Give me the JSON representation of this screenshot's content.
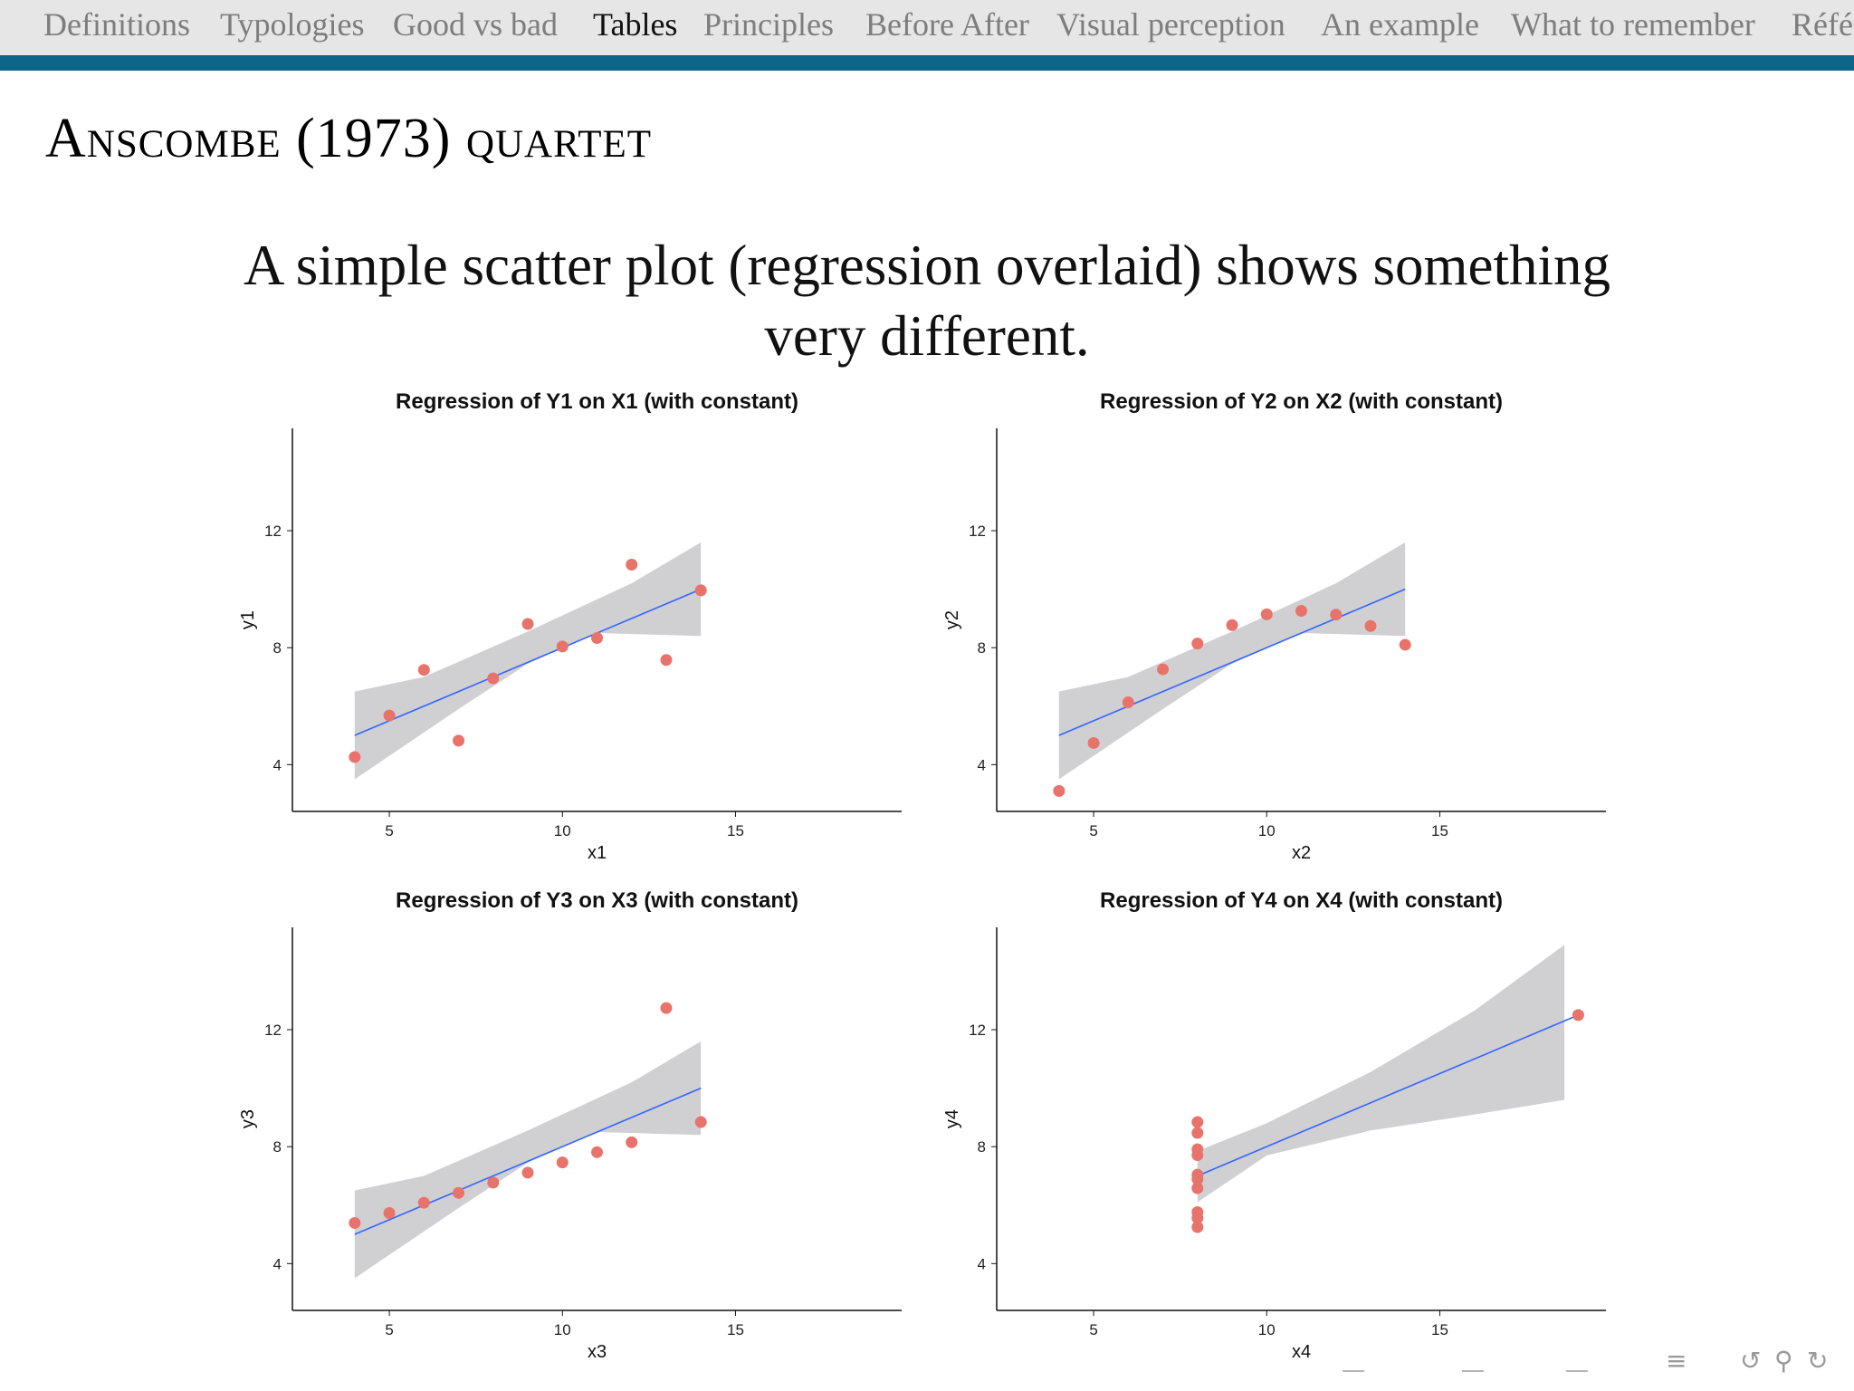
{
  "nav": {
    "items": [
      {
        "label": "Definitions"
      },
      {
        "label": "Typologies"
      },
      {
        "label": "Good vs bad"
      },
      {
        "label": "Tables",
        "active": true
      },
      {
        "label": "Principles"
      },
      {
        "label": "Before After"
      },
      {
        "label": "Visual perception"
      },
      {
        "label": "An example"
      },
      {
        "label": "What to remember"
      },
      {
        "label": "Réfé"
      }
    ]
  },
  "slide": {
    "title": "Anscombe (1973) quartet",
    "subtitle_line1": "A simple scatter plot (regression overlaid) shows something",
    "subtitle_line2": "very different."
  },
  "colors": {
    "point": "#e8736b",
    "line": "#3366ff",
    "band": "#c8c8ca",
    "nav_rule": "#0b6689"
  },
  "chart_data": [
    {
      "type": "scatter",
      "title": "Regression of Y1 on X1 (with constant)",
      "xlabel": "x1",
      "ylabel": "y1",
      "xlim": [
        2.2,
        19.8
      ],
      "ylim": [
        2.4,
        15.5
      ],
      "xticks": [
        5,
        10,
        15
      ],
      "yticks": [
        4,
        8,
        12
      ],
      "x": [
        10,
        8,
        13,
        9,
        11,
        14,
        6,
        4,
        12,
        7,
        5
      ],
      "y": [
        8.04,
        6.95,
        7.58,
        8.81,
        8.33,
        9.96,
        7.24,
        4.26,
        10.84,
        4.82,
        5.68
      ],
      "regression": {
        "intercept": 3.0,
        "slope": 0.5,
        "x_range": [
          4,
          14
        ]
      },
      "band": {
        "lower": [
          [
            4,
            3.5
          ],
          [
            7,
            5.9
          ],
          [
            9,
            7.45
          ],
          [
            11,
            8.5
          ],
          [
            14,
            8.4
          ]
        ],
        "upper": [
          [
            4,
            6.5
          ],
          [
            6,
            7.0
          ],
          [
            9,
            8.55
          ],
          [
            12,
            10.2
          ],
          [
            14,
            11.6
          ]
        ]
      }
    },
    {
      "type": "scatter",
      "title": "Regression of Y2 on X2 (with constant)",
      "xlabel": "x2",
      "ylabel": "y2",
      "xlim": [
        2.2,
        19.8
      ],
      "ylim": [
        2.4,
        15.5
      ],
      "xticks": [
        5,
        10,
        15
      ],
      "yticks": [
        4,
        8,
        12
      ],
      "x": [
        10,
        8,
        13,
        9,
        11,
        14,
        6,
        4,
        12,
        7,
        5
      ],
      "y": [
        9.14,
        8.14,
        8.74,
        8.77,
        9.26,
        8.1,
        6.13,
        3.1,
        9.13,
        7.26,
        4.74
      ],
      "regression": {
        "intercept": 3.0,
        "slope": 0.5,
        "x_range": [
          4,
          14
        ]
      },
      "band": {
        "lower": [
          [
            4,
            3.5
          ],
          [
            7,
            5.9
          ],
          [
            9,
            7.45
          ],
          [
            11,
            8.5
          ],
          [
            14,
            8.4
          ]
        ],
        "upper": [
          [
            4,
            6.5
          ],
          [
            6,
            7.0
          ],
          [
            9,
            8.55
          ],
          [
            12,
            10.2
          ],
          [
            14,
            11.6
          ]
        ]
      }
    },
    {
      "type": "scatter",
      "title": "Regression of Y3 on X3 (with constant)",
      "xlabel": "x3",
      "ylabel": "y3",
      "xlim": [
        2.2,
        19.8
      ],
      "ylim": [
        2.4,
        15.5
      ],
      "xticks": [
        5,
        10,
        15
      ],
      "yticks": [
        4,
        8,
        12
      ],
      "x": [
        10,
        8,
        13,
        9,
        11,
        14,
        6,
        4,
        12,
        7,
        5
      ],
      "y": [
        7.46,
        6.77,
        12.74,
        7.11,
        7.81,
        8.84,
        6.08,
        5.39,
        8.15,
        6.42,
        5.73
      ],
      "regression": {
        "intercept": 3.0,
        "slope": 0.5,
        "x_range": [
          4,
          14
        ]
      },
      "band": {
        "lower": [
          [
            4,
            3.5
          ],
          [
            7,
            5.9
          ],
          [
            9,
            7.45
          ],
          [
            11,
            8.5
          ],
          [
            14,
            8.4
          ]
        ],
        "upper": [
          [
            4,
            6.5
          ],
          [
            6,
            7.0
          ],
          [
            9,
            8.55
          ],
          [
            12,
            10.2
          ],
          [
            14,
            11.6
          ]
        ]
      }
    },
    {
      "type": "scatter",
      "title": "Regression of Y4 on X4 (with constant)",
      "xlabel": "x4",
      "ylabel": "y4",
      "xlim": [
        2.2,
        19.8
      ],
      "ylim": [
        2.4,
        15.5
      ],
      "xticks": [
        5,
        10,
        15
      ],
      "yticks": [
        4,
        8,
        12
      ],
      "x": [
        8,
        8,
        8,
        8,
        8,
        8,
        8,
        19,
        8,
        8,
        8
      ],
      "y": [
        6.58,
        5.76,
        7.71,
        8.84,
        8.47,
        7.04,
        5.25,
        12.5,
        5.56,
        7.91,
        6.89
      ],
      "regression": {
        "intercept": 3.0,
        "slope": 0.5,
        "x_range": [
          8,
          19
        ]
      },
      "band": {
        "lower": [
          [
            8,
            6.1
          ],
          [
            10,
            7.7
          ],
          [
            13,
            8.55
          ],
          [
            16,
            9.1
          ],
          [
            18.6,
            9.6
          ]
        ],
        "upper": [
          [
            8,
            7.85
          ],
          [
            10,
            8.8
          ],
          [
            13,
            10.55
          ],
          [
            16,
            12.65
          ],
          [
            18.6,
            14.9
          ]
        ]
      }
    }
  ]
}
